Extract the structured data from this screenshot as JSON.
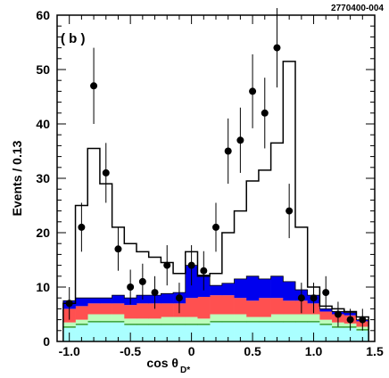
{
  "figure_id": "2770400-004",
  "chart_data": {
    "type": "bar",
    "title": "",
    "panel_label": "( b )",
    "xlabel_main": "cos θ",
    "xlabel_sub": "D*",
    "ylabel": "Events / 0.13",
    "xlim": [
      -1.1,
      1.5
    ],
    "ylim": [
      0,
      60
    ],
    "x_ticks": [
      -1.0,
      -0.5,
      0.0,
      0.5,
      1.0,
      1.5
    ],
    "x_tick_labels": [
      "-1.0",
      "-0.5",
      "0",
      "0.5",
      "1.0",
      "1.5"
    ],
    "y_ticks": [
      0,
      10,
      20,
      30,
      40,
      50,
      60
    ],
    "y_tick_labels": [
      "0",
      "10",
      "20",
      "30",
      "40",
      "50",
      "60"
    ],
    "bin_edges": [
      -1.05,
      -0.95,
      -0.85,
      -0.75,
      -0.65,
      -0.55,
      -0.45,
      -0.35,
      -0.25,
      -0.15,
      -0.05,
      0.05,
      0.15,
      0.25,
      0.35,
      0.45,
      0.55,
      0.65,
      0.75,
      0.85,
      0.95,
      1.05,
      1.15,
      1.25,
      1.35,
      1.45
    ],
    "stacked_series": [
      {
        "color": "#aaffff",
        "values": [
          2.5,
          3.0,
          3.5,
          3.5,
          3.5,
          3.0,
          3.0,
          3.0,
          3.0,
          3.0,
          3.0,
          3.0,
          3.5,
          3.5,
          3.5,
          3.5,
          3.5,
          3.5,
          3.5,
          3.5,
          3.5,
          3.0,
          2.5,
          2.5,
          2.0
        ]
      },
      {
        "color": "#44aa44",
        "values": [
          0.3,
          0.3,
          0.3,
          0.3,
          0.3,
          0.3,
          0.3,
          0.3,
          0.3,
          0.3,
          0.3,
          0.3,
          0.3,
          0.3,
          0.3,
          0.3,
          0.3,
          0.3,
          0.3,
          0.3,
          0.3,
          0.3,
          0.3,
          0.3,
          0.3
        ]
      },
      {
        "color": "#bbffbb",
        "values": [
          0.7,
          0.7,
          1.2,
          1.2,
          1.2,
          0.9,
          0.9,
          0.9,
          1.2,
          1.2,
          1.2,
          0.9,
          1.2,
          1.2,
          1.2,
          0.7,
          0.7,
          1.2,
          1.2,
          1.2,
          1.2,
          0.7,
          0.7,
          0.5,
          0.4
        ]
      },
      {
        "color": "#ff5050",
        "values": [
          2.5,
          2.5,
          2.0,
          2.0,
          2.0,
          2.5,
          2.8,
          2.8,
          2.5,
          2.5,
          3.5,
          4.0,
          3.5,
          3.5,
          3.0,
          3.0,
          3.5,
          3.0,
          2.5,
          2.5,
          2.0,
          1.5,
          1.5,
          1.5,
          1.0
        ]
      },
      {
        "color": "#0000ee",
        "values": [
          1.5,
          1.5,
          1.0,
          1.0,
          1.5,
          1.3,
          1.5,
          1.5,
          1.8,
          2.0,
          6.0,
          4.0,
          1.8,
          2.2,
          3.5,
          4.5,
          3.5,
          4.0,
          3.5,
          2.0,
          1.5,
          0.5,
          0.5,
          0.5,
          0.3
        ]
      }
    ],
    "total_prediction": [
      7.0,
      25.0,
      35.5,
      29.0,
      21.0,
      18.0,
      16.5,
      15.5,
      14.5,
      12.5,
      16.5,
      12.0,
      12.5,
      20.0,
      24.0,
      29.5,
      31.5,
      36.5,
      51.5,
      21.0,
      10.0,
      6.5,
      6.0,
      5.5,
      4.5
    ],
    "data_x": [
      -1.0,
      -0.9,
      -0.8,
      -0.7,
      -0.6,
      -0.5,
      -0.4,
      -0.3,
      -0.2,
      -0.1,
      0.0,
      0.1,
      0.2,
      0.3,
      0.4,
      0.5,
      0.6,
      0.7,
      0.8,
      0.9,
      1.0,
      1.1,
      1.2,
      1.3,
      1.4
    ],
    "data_y": [
      7,
      21,
      47,
      31,
      17,
      10,
      11,
      9,
      14,
      8,
      14,
      13,
      21,
      35,
      37,
      46,
      42,
      54,
      24,
      8,
      8,
      9,
      5,
      4,
      4
    ],
    "data_err": [
      3.0,
      4.5,
      7.0,
      5.5,
      4.0,
      3.2,
      3.3,
      3.0,
      3.7,
      2.8,
      3.7,
      3.6,
      4.5,
      6.0,
      6.0,
      6.8,
      6.5,
      7.3,
      5.0,
      2.8,
      2.8,
      3.0,
      2.3,
      2.0,
      2.0
    ]
  }
}
